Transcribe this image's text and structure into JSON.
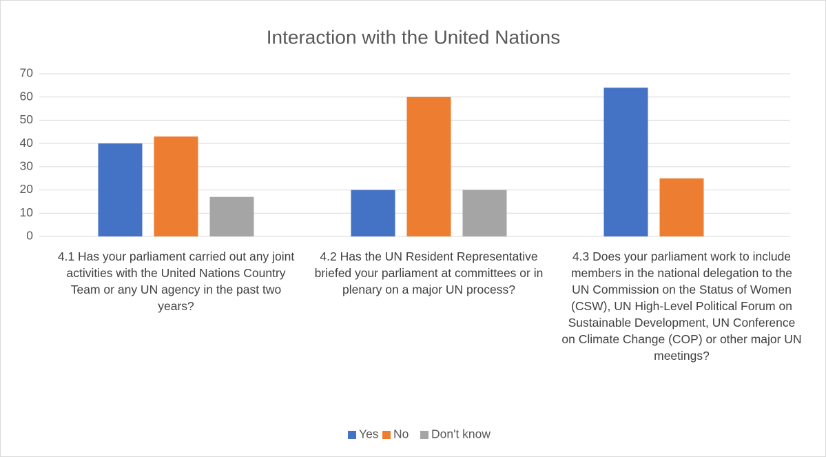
{
  "chart_data": {
    "type": "bar",
    "title": "Interaction with the United Nations",
    "categories": [
      "4.1 Has your parliament carried out any joint activities with the United Nations Country Team or any UN agency in the past two years?",
      "4.2 Has the UN Resident Representative briefed your parliament at committees or in plenary on a major UN process?",
      "4.3 Does your parliament work to include members in the national delegation to the UN Commission on the Status of Women (CSW), UN High-Level Political Forum on Sustainable Development, UN Conference on Climate Change (COP) or other major UN meetings?"
    ],
    "series": [
      {
        "name": "Yes",
        "color": "#4472c4",
        "values": [
          40,
          20,
          64
        ]
      },
      {
        "name": "No",
        "color": "#ed7d31",
        "values": [
          43,
          60,
          25
        ]
      },
      {
        "name": "Don't know",
        "color": "#a5a5a5",
        "values": [
          17,
          20,
          null
        ]
      }
    ],
    "ylim": [
      0,
      70
    ],
    "yticks": [
      0,
      10,
      20,
      30,
      40,
      50,
      60,
      70
    ],
    "grid": true,
    "legend": "bottom"
  }
}
